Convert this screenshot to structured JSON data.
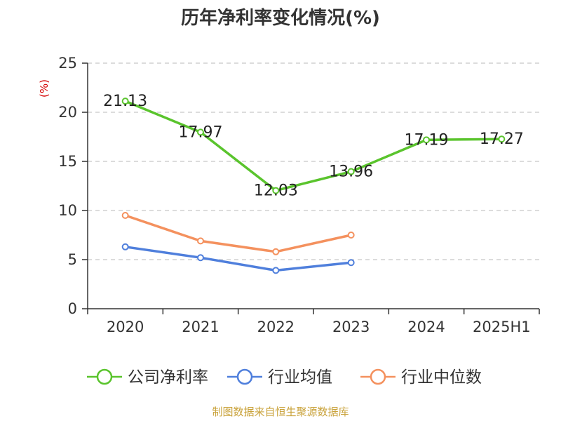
{
  "chart_data": {
    "type": "line",
    "title": "历年净利率变化情况(%)",
    "ylabel": "(%)",
    "ylim": [
      0,
      25
    ],
    "yticks": [
      0,
      5,
      10,
      15,
      20,
      25
    ],
    "categories": [
      "2020",
      "2021",
      "2022",
      "2023",
      "2024",
      "2025H1"
    ],
    "grid": true,
    "legend_position": "bottom",
    "series": [
      {
        "name": "公司净利率",
        "color": "#5ac42d",
        "values": [
          21.13,
          17.97,
          12.03,
          13.96,
          17.19,
          17.27
        ],
        "data_labels": [
          "21.13",
          "17.97",
          "12.03",
          "13.96",
          "17.19",
          "17.27"
        ]
      },
      {
        "name": "行业均值",
        "color": "#4f7fdc",
        "values": [
          6.3,
          5.2,
          3.9,
          4.7,
          null,
          null
        ]
      },
      {
        "name": "行业中位数",
        "color": "#f4915e",
        "values": [
          9.5,
          6.9,
          5.8,
          7.5,
          null,
          null
        ]
      }
    ]
  },
  "source": "制图数据来自恒生聚源数据库"
}
